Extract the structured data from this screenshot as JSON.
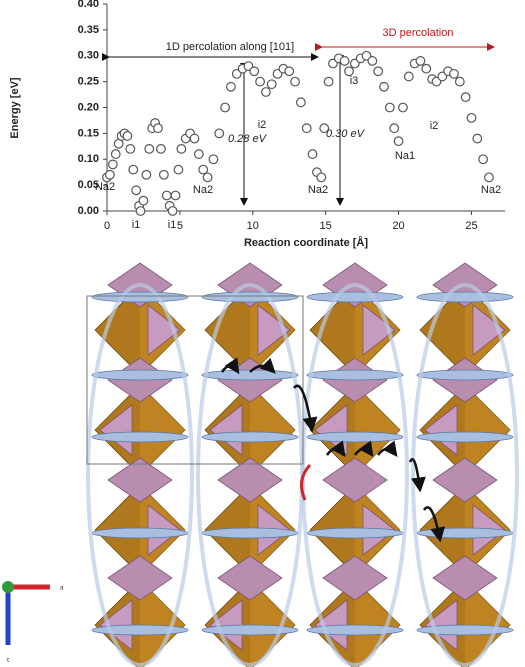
{
  "chart_data": {
    "type": "scatter",
    "xlabel": "Reaction coordinate [Å]",
    "ylabel": "Energy [eV]",
    "xlim": [
      0,
      27.3
    ],
    "ylim": [
      0,
      0.4
    ],
    "xticks": [
      0,
      5,
      10,
      15,
      20,
      25
    ],
    "yticks": [
      {
        "value": 0,
        "label": "0.00"
      },
      {
        "value": 0.05,
        "label": "0.05"
      },
      {
        "value": 0.1,
        "label": "0.10"
      },
      {
        "value": 0.15,
        "label": "0.15"
      },
      {
        "value": 0.2,
        "label": "0.20"
      },
      {
        "value": 0.25,
        "label": "0.25"
      },
      {
        "value": 0.3,
        "label": "0.30"
      },
      {
        "value": 0.35,
        "label": "0.35"
      },
      {
        "value": 0.4,
        "label": "0.40"
      }
    ],
    "color": "#555555",
    "x": [
      0,
      0.2,
      0.4,
      0.6,
      0.8,
      1.0,
      1.2,
      1.4,
      1.6,
      1.8,
      2.0,
      2.2,
      2.3,
      2.5,
      2.7,
      2.9,
      3.1,
      3.3,
      3.5,
      3.7,
      3.9,
      4.1,
      4.3,
      4.5,
      4.7,
      4.9,
      5.1,
      5.4,
      5.7,
      6.0,
      6.3,
      6.6,
      6.9,
      7.3,
      7.7,
      8.1,
      8.5,
      8.9,
      9.3,
      9.7,
      10.1,
      10.5,
      10.9,
      11.3,
      11.7,
      12.1,
      12.5,
      12.9,
      13.3,
      13.7,
      14.1,
      14.4,
      14.7,
      14.9,
      15.2,
      15.5,
      15.9,
      16.3,
      16.6,
      17.0,
      17.4,
      17.8,
      18.2,
      18.6,
      19.0,
      19.4,
      19.7,
      20.0,
      20.3,
      20.7,
      21.1,
      21.5,
      21.9,
      22.3,
      22.6,
      23.0,
      23.4,
      23.8,
      24.2,
      24.6,
      25.0,
      25.4,
      25.8,
      26.2
    ],
    "values": [
      0.065,
      0.07,
      0.09,
      0.11,
      0.13,
      0.145,
      0.15,
      0.145,
      0.12,
      0.08,
      0.04,
      0.01,
      0.0,
      0.02,
      0.07,
      0.12,
      0.16,
      0.17,
      0.16,
      0.12,
      0.07,
      0.03,
      0.01,
      0.0,
      0.03,
      0.08,
      0.12,
      0.14,
      0.15,
      0.14,
      0.11,
      0.08,
      0.065,
      0.1,
      0.15,
      0.2,
      0.24,
      0.265,
      0.275,
      0.28,
      0.27,
      0.25,
      0.23,
      0.245,
      0.265,
      0.275,
      0.27,
      0.25,
      0.21,
      0.16,
      0.11,
      0.075,
      0.065,
      0.16,
      0.25,
      0.285,
      0.295,
      0.29,
      0.27,
      0.285,
      0.295,
      0.3,
      0.29,
      0.27,
      0.24,
      0.2,
      0.16,
      0.135,
      0.2,
      0.26,
      0.285,
      0.29,
      0.275,
      0.255,
      0.25,
      0.26,
      0.27,
      0.265,
      0.25,
      0.22,
      0.18,
      0.14,
      0.1,
      0.065
    ],
    "annotations": [
      "Na2",
      "i1",
      "i1",
      "Na2",
      "i2",
      "0.28 eV",
      "Na2",
      "i3",
      "0.30 eV",
      "Na1",
      "i2",
      "Na2",
      "1D percolation along [101]",
      "3D percolation"
    ]
  },
  "figure": {
    "axis_labels": [
      "a",
      "c"
    ]
  }
}
